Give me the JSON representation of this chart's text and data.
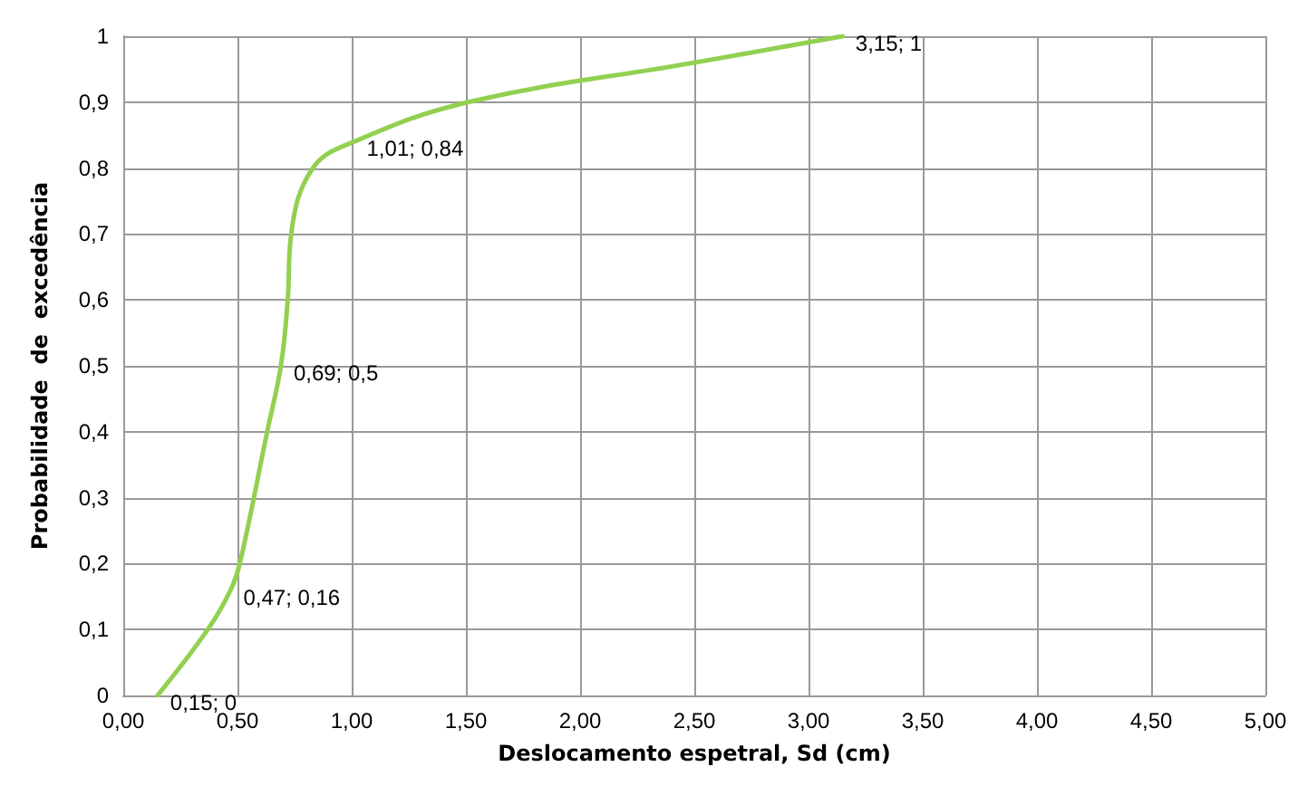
{
  "chart_data": {
    "type": "line",
    "xlabel": "Deslocamento espetral, Sd (cm)",
    "ylabel": "Probabilidade  de  excedência",
    "xlim": [
      0,
      5
    ],
    "xticks": [
      {
        "value": 0,
        "label": "0,00"
      },
      {
        "value": 0.5,
        "label": "0,50"
      },
      {
        "value": 1,
        "label": "1,00"
      },
      {
        "value": 1.5,
        "label": "1,50"
      },
      {
        "value": 2,
        "label": "2,00"
      },
      {
        "value": 2.5,
        "label": "2,50"
      },
      {
        "value": 3,
        "label": "3,00"
      },
      {
        "value": 3.5,
        "label": "3,50"
      },
      {
        "value": 4,
        "label": "4,00"
      },
      {
        "value": 4.5,
        "label": "4,50"
      },
      {
        "value": 5,
        "label": "5,00"
      }
    ],
    "ylim": [
      0,
      1
    ],
    "yticks": [
      0,
      {
        "value": 0.1,
        "label": "0,1"
      },
      {
        "value": 0.2,
        "label": "0,2"
      },
      {
        "value": 0.3,
        "label": "0,3"
      },
      {
        "value": 0.4,
        "label": "0,4"
      },
      {
        "value": 0.5,
        "label": "0,5"
      },
      {
        "value": 0.6,
        "label": "0,6"
      },
      {
        "value": 0.7,
        "label": "0,7"
      },
      {
        "value": 0.8,
        "label": "0,8"
      },
      {
        "value": 0.9,
        "label": "0,9"
      },
      1
    ],
    "grid": true,
    "marker": "none",
    "line_style": "solid",
    "series": [
      {
        "color": "#92d050",
        "x": [
          0.15,
          0.37,
          0.47,
          0.51,
          0.63,
          0.69,
          0.72,
          0.735,
          0.83,
          1.01,
          1.51,
          2.5,
          3.15
        ],
        "values": [
          0,
          0.1,
          0.16,
          0.2,
          0.4,
          0.5,
          0.6,
          0.7,
          0.8,
          0.84,
          0.9,
          0.96,
          1
        ],
        "value_labels": [
          "0,15; 0",
          null,
          "0,47; 0,16",
          null,
          null,
          "0,69; 0,5",
          null,
          null,
          null,
          "1,01; 0,84",
          null,
          null,
          "3,15; 1"
        ]
      }
    ]
  }
}
